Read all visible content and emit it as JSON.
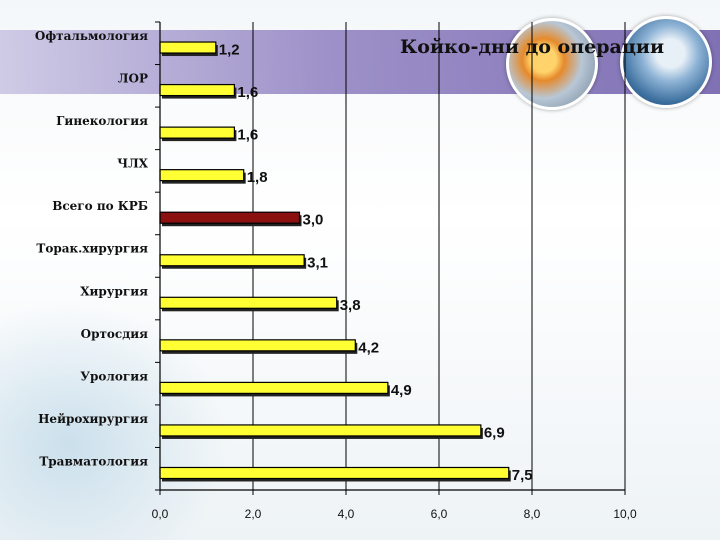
{
  "chart_data": {
    "type": "bar",
    "orientation": "horizontal",
    "title": "Койко-дни до операции",
    "categories": [
      "Офтальмология",
      "ЛОР",
      "Гинекология",
      "ЧЛХ",
      "Всего по КРБ",
      "Торак.хирургия",
      "Хирургия",
      "Ортосдия",
      "Урология",
      "Нейрохирургия",
      "Травматология"
    ],
    "values": [
      1.2,
      1.6,
      1.6,
      1.8,
      3.0,
      3.1,
      3.8,
      4.2,
      4.9,
      6.9,
      7.5
    ],
    "value_labels": [
      "1,2",
      "1,6",
      "1,6",
      "1,8",
      "3,0",
      "3,1",
      "3,8",
      "4,2",
      "4,9",
      "6,9",
      "7,5"
    ],
    "xlim": [
      0,
      10
    ],
    "xticks": [
      0,
      2,
      4,
      6,
      8,
      10
    ],
    "xtick_labels": [
      "0,0",
      "2,0",
      "4,0",
      "6,0",
      "8,0",
      "10,0"
    ],
    "gridlines": "vertical",
    "colors": {
      "default_bar": "#ffff33",
      "highlight_bar": "#8b1010",
      "highlight_index": 4,
      "bar_outline": "#000000"
    }
  }
}
